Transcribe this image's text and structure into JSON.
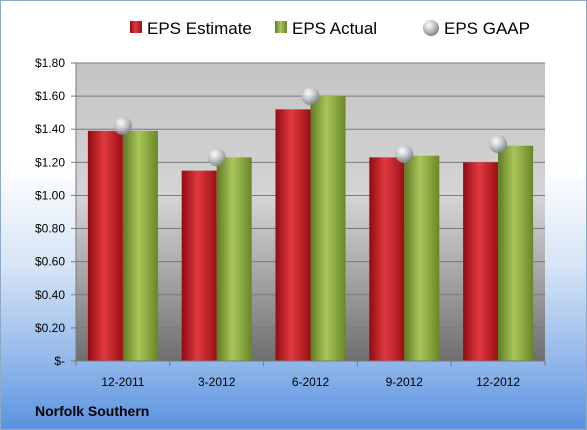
{
  "chart_data": {
    "type": "bar",
    "categories": [
      "12-2011",
      "3-2012",
      "6-2012",
      "9-2012",
      "12-2012"
    ],
    "series": [
      {
        "name": "EPS Estimate",
        "values": [
          1.39,
          1.15,
          1.52,
          1.23,
          1.2
        ],
        "color": "#c0161f"
      },
      {
        "name": "EPS Actual",
        "values": [
          1.39,
          1.23,
          1.6,
          1.24,
          1.3
        ],
        "color": "#8aaa3c"
      },
      {
        "name": "EPS GAAP",
        "values": [
          1.42,
          1.23,
          1.6,
          1.25,
          1.31
        ],
        "color": "#b8bcc2",
        "marker": "sphere"
      }
    ],
    "ylim": [
      0,
      1.8
    ],
    "yticks": [
      "$-",
      "$0.20",
      "$0.40",
      "$0.60",
      "$0.80",
      "$1.00",
      "$1.20",
      "$1.40",
      "$1.60",
      "$1.80"
    ],
    "grid": true,
    "legend_position": "top",
    "company": "Norfolk Southern"
  }
}
